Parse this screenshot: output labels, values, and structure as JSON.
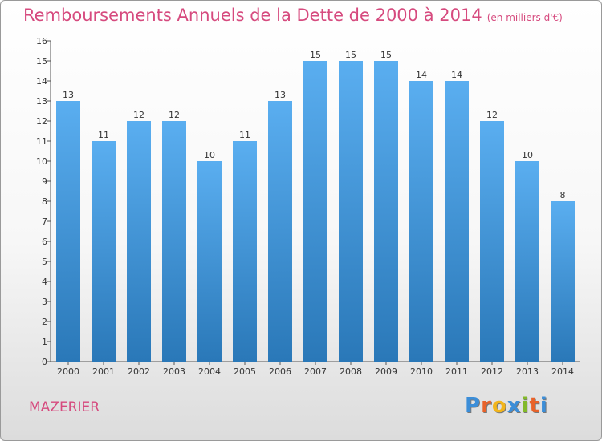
{
  "header": {
    "title": "Remboursements Annuels de la Dette de 2000 à 2014",
    "unit": "(en milliers d'€)"
  },
  "commune": "MAZERIER",
  "logo": {
    "letters": [
      "P",
      "r",
      "o",
      "x",
      "i",
      "t",
      "i"
    ],
    "colors": [
      "#3c8ed8",
      "#e8622a",
      "#f2b51c",
      "#3c8ed8",
      "#83b92a",
      "#e8622a",
      "#3c8ed8"
    ]
  },
  "chart_data": {
    "type": "bar",
    "title": "Remboursements Annuels de la Dette de 2000 à 2014",
    "subtitle": "(en milliers d'€)",
    "xlabel": "",
    "ylabel": "",
    "categories": [
      "2000",
      "2001",
      "2002",
      "2003",
      "2004",
      "2005",
      "2006",
      "2007",
      "2008",
      "2009",
      "2010",
      "2011",
      "2012",
      "2013",
      "2014"
    ],
    "values": [
      13,
      11,
      12,
      12,
      10,
      11,
      13,
      15,
      15,
      15,
      14,
      14,
      12,
      10,
      8
    ],
    "ylim": [
      0,
      16
    ],
    "yticks": [
      0,
      1,
      2,
      3,
      4,
      5,
      6,
      7,
      8,
      9,
      10,
      11,
      12,
      13,
      14,
      15,
      16
    ],
    "grid": false,
    "bar_color_top": "#5aaef0",
    "bar_color_bottom": "#2a78b8"
  }
}
